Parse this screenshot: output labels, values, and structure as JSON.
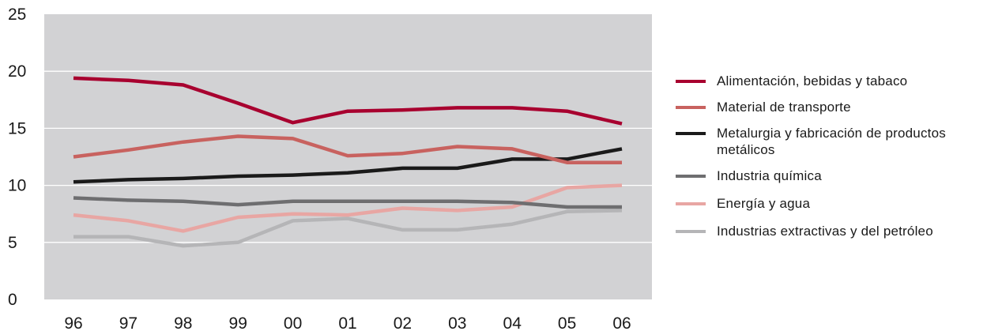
{
  "chart_data": {
    "type": "line",
    "categories": [
      "96",
      "97",
      "98",
      "99",
      "00",
      "01",
      "02",
      "03",
      "04",
      "05",
      "06"
    ],
    "ylim": [
      0,
      25
    ],
    "yticks": [
      "0",
      "5",
      "10",
      "15",
      "20",
      "25"
    ],
    "grid": true,
    "legend_position": "right",
    "plot_background": "#d2d2d4",
    "series": [
      {
        "name": "Alimentación, bebidas y tabaco",
        "color": "#a8002f",
        "values": [
          19.4,
          19.2,
          18.8,
          17.2,
          15.5,
          16.5,
          16.6,
          16.8,
          16.8,
          16.5,
          15.4
        ]
      },
      {
        "name": "Material de transporte",
        "color": "#c8625f",
        "values": [
          12.5,
          13.1,
          13.8,
          14.3,
          14.1,
          12.6,
          12.8,
          13.4,
          13.2,
          12.0,
          12.0
        ]
      },
      {
        "name": "Metalurgia y fabricación de productos metálicos",
        "color": "#1a1a1a",
        "values": [
          10.3,
          10.5,
          10.6,
          10.8,
          10.9,
          11.1,
          11.5,
          11.5,
          12.3,
          12.3,
          13.2
        ]
      },
      {
        "name": "Industria química",
        "color": "#6e6e70",
        "values": [
          8.9,
          8.7,
          8.6,
          8.3,
          8.6,
          8.6,
          8.6,
          8.6,
          8.5,
          8.1,
          8.1
        ]
      },
      {
        "name": "Energía y agua",
        "color": "#e8a6a3",
        "values": [
          7.4,
          6.9,
          6.0,
          7.2,
          7.5,
          7.4,
          8.0,
          7.8,
          8.1,
          9.8,
          10.0
        ]
      },
      {
        "name": "Industrias extractivas y del petróleo",
        "color": "#b5b5b7",
        "values": [
          5.5,
          5.5,
          4.7,
          5.0,
          6.9,
          7.1,
          6.1,
          6.1,
          6.6,
          7.7,
          7.8
        ]
      }
    ]
  }
}
